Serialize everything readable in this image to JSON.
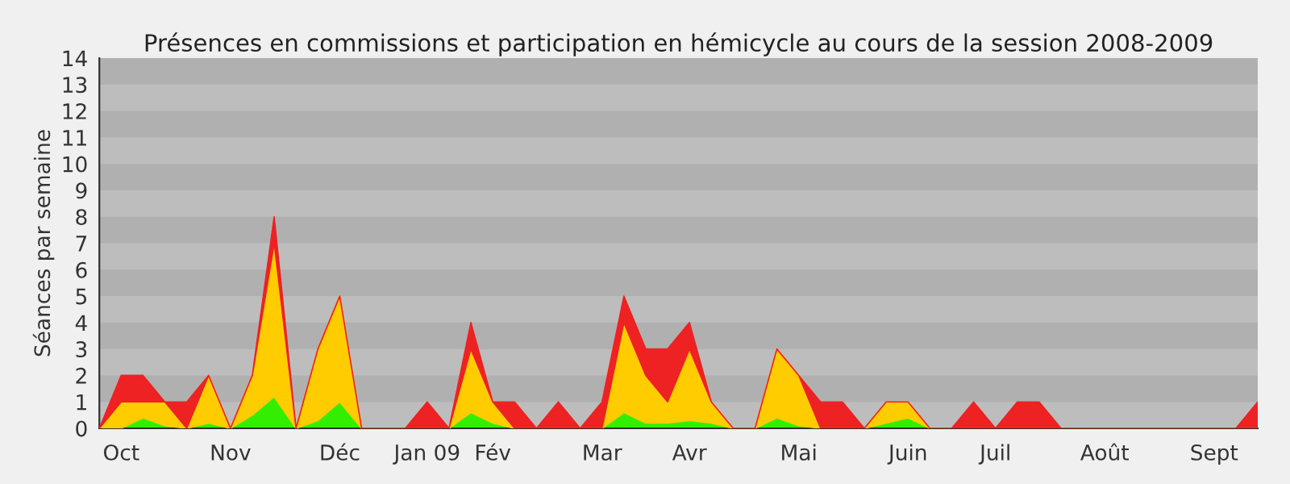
{
  "chart_data": {
    "type": "area",
    "stacked": true,
    "title": "Présences en commissions et participation en hémicycle au cours de la session 2008-2009",
    "ylabel": "Séances par semaine",
    "categories": [
      null,
      "Oct",
      null,
      null,
      null,
      null,
      "Nov",
      null,
      null,
      null,
      null,
      "Déc",
      null,
      null,
      null,
      "Jan 09",
      null,
      null,
      "Fév",
      null,
      null,
      null,
      null,
      "Mar",
      null,
      null,
      null,
      "Avr",
      null,
      null,
      null,
      null,
      "Mai",
      null,
      null,
      null,
      null,
      "Juin",
      null,
      null,
      null,
      "Juil",
      null,
      null,
      null,
      null,
      "Août",
      null,
      null,
      null,
      null,
      "Sept",
      null,
      null
    ],
    "series": [
      {
        "color": "#33ee00",
        "values": [
          0,
          0,
          0.4,
          0.1,
          0,
          0.2,
          0,
          0.5,
          1.2,
          0,
          0.3,
          1,
          0,
          0,
          0,
          0,
          0,
          0.6,
          0.2,
          0,
          0,
          0,
          0,
          0,
          0.6,
          0.2,
          0.2,
          0.3,
          0.2,
          0,
          0,
          0.4,
          0.1,
          0,
          0,
          0,
          0.2,
          0.4,
          0,
          0,
          0,
          0,
          0,
          0,
          0,
          0,
          0,
          0,
          0,
          0,
          0,
          0,
          0,
          0
        ]
      },
      {
        "color": "#ffcc00",
        "values": [
          0,
          1,
          0.6,
          0.9,
          0,
          1.8,
          0,
          1.5,
          5.8,
          0,
          2.7,
          4,
          0,
          0,
          0,
          0,
          0,
          2.4,
          0.8,
          0,
          0,
          0,
          0,
          0,
          3.4,
          1.8,
          0.8,
          2.7,
          0.8,
          0,
          0,
          2.6,
          1.9,
          0,
          0,
          0,
          0.8,
          0.6,
          0,
          0,
          0,
          0,
          0,
          0,
          0,
          0,
          0,
          0,
          0,
          0,
          0,
          0,
          0,
          0
        ]
      },
      {
        "color": "#ee2222",
        "values": [
          0,
          1,
          1,
          0,
          1,
          0,
          0,
          0,
          1,
          0,
          0,
          0,
          0,
          0,
          0,
          1,
          0,
          1,
          0,
          1,
          0,
          1,
          0,
          1,
          1,
          1,
          2,
          1,
          0,
          0,
          0,
          0,
          0,
          1,
          1,
          0,
          0,
          0,
          0,
          0,
          1,
          0,
          1,
          1,
          0,
          0,
          0,
          0,
          0,
          0,
          0,
          0,
          0,
          1
        ]
      }
    ],
    "ylim": [
      0,
      14
    ],
    "yticks": [
      0,
      1,
      2,
      3,
      4,
      5,
      6,
      7,
      8,
      9,
      10,
      11,
      12,
      13,
      14
    ],
    "bands": [
      {
        "axis": "y",
        "from": 1,
        "to": 2,
        "color": "#b0b0b0"
      },
      {
        "axis": "y",
        "from": 3,
        "to": 4,
        "color": "#b0b0b0"
      },
      {
        "axis": "y",
        "from": 5,
        "to": 6,
        "color": "#b0b0b0"
      },
      {
        "axis": "y",
        "from": 7,
        "to": 8,
        "color": "#b0b0b0"
      },
      {
        "axis": "y",
        "from": 9,
        "to": 10,
        "color": "#b0b0b0"
      },
      {
        "axis": "y",
        "from": 11,
        "to": 12,
        "color": "#b0b0b0"
      },
      {
        "axis": "y",
        "from": 13,
        "to": 14,
        "color": "#b0b0b0"
      }
    ]
  }
}
